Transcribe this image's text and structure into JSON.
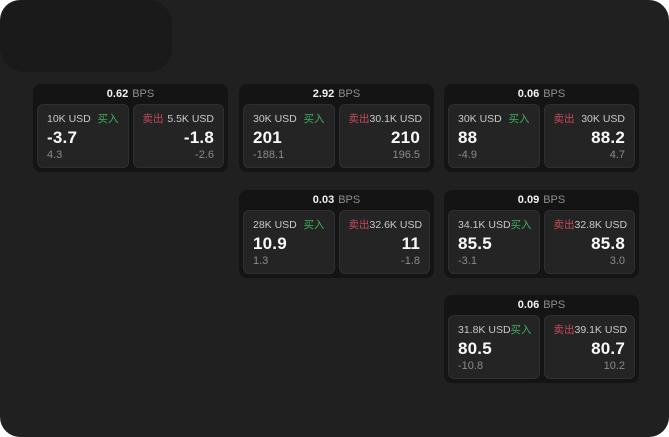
{
  "window": {
    "background": "#202020",
    "corner_shape_color": "#1a1a1a"
  },
  "colors": {
    "buy_green": "#3fae5f",
    "sell_red": "#c5495b",
    "card_bg": "#141414",
    "panel_bg": "#242424",
    "value_white": "#fafafa",
    "label_gray": "#c9c9c9",
    "delta_gray": "#8a8a8a"
  },
  "cards": [
    {
      "bps": "0.62",
      "bps_unit": "BPS",
      "buy": {
        "amount": "10K USD",
        "side": "买入",
        "value": "-3.7",
        "delta": "4.3"
      },
      "sell": {
        "side": "卖出",
        "amount": "5.5K USD",
        "value": "-1.8",
        "delta": "-2.6"
      }
    },
    {
      "bps": "2.92",
      "bps_unit": "BPS",
      "buy": {
        "amount": "30K USD",
        "side": "买入",
        "value": "201",
        "delta": "-188.1"
      },
      "sell": {
        "side": "卖出",
        "amount": "30.1K USD",
        "value": "210",
        "delta": "196.5"
      }
    },
    {
      "bps": "0.06",
      "bps_unit": "BPS",
      "buy": {
        "amount": "30K USD",
        "side": "买入",
        "value": "88",
        "delta": "-4.9"
      },
      "sell": {
        "side": "卖出",
        "amount": "30K USD",
        "value": "88.2",
        "delta": "4.7"
      }
    },
    {
      "bps": "0.03",
      "bps_unit": "BPS",
      "buy": {
        "amount": "28K USD",
        "side": "买入",
        "value": "10.9",
        "delta": "1.3"
      },
      "sell": {
        "side": "卖出",
        "amount": "32.6K USD",
        "value": "11",
        "delta": "-1.8"
      }
    },
    {
      "bps": "0.09",
      "bps_unit": "BPS",
      "buy": {
        "amount": "34.1K USD",
        "side": "买入",
        "value": "85.5",
        "delta": "-3.1"
      },
      "sell": {
        "side": "卖出",
        "amount": "32.8K USD",
        "value": "85.8",
        "delta": "3.0"
      }
    },
    {
      "bps": "0.06",
      "bps_unit": "BPS",
      "buy": {
        "amount": "31.8K USD",
        "side": "买入",
        "value": "80.5",
        "delta": "-10.8"
      },
      "sell": {
        "side": "卖出",
        "amount": "39.1K USD",
        "value": "80.7",
        "delta": "10.2"
      }
    }
  ]
}
